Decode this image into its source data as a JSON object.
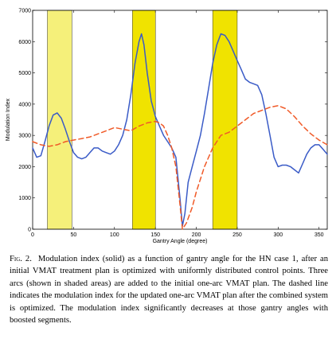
{
  "figure": {
    "chart_data": {
      "type": "line",
      "xlabel": "Gantry Angle (degree)",
      "ylabel": "Modulation Index",
      "xlim": [
        0,
        360
      ],
      "ylim": [
        0,
        7000
      ],
      "xticks": [
        0,
        50,
        100,
        150,
        200,
        250,
        300,
        350
      ],
      "yticks": [
        0,
        1000,
        2000,
        3000,
        4000,
        5000,
        6000,
        7000
      ],
      "grid": false,
      "shaded_regions": [
        {
          "x0": 18,
          "x1": 48,
          "color": "#f5f07a"
        },
        {
          "x0": 122,
          "x1": 150,
          "color": "#f0e300"
        },
        {
          "x0": 220,
          "x1": 250,
          "color": "#f0e300"
        }
      ],
      "series": [
        {
          "style": "solid",
          "color": "#3a5bc7",
          "points": [
            [
              0,
              2600
            ],
            [
              5,
              2300
            ],
            [
              10,
              2350
            ],
            [
              15,
              2800
            ],
            [
              20,
              3300
            ],
            [
              25,
              3650
            ],
            [
              30,
              3720
            ],
            [
              35,
              3550
            ],
            [
              40,
              3200
            ],
            [
              45,
              2800
            ],
            [
              50,
              2450
            ],
            [
              55,
              2300
            ],
            [
              60,
              2250
            ],
            [
              65,
              2300
            ],
            [
              70,
              2450
            ],
            [
              75,
              2600
            ],
            [
              80,
              2600
            ],
            [
              85,
              2500
            ],
            [
              90,
              2450
            ],
            [
              95,
              2400
            ],
            [
              100,
              2500
            ],
            [
              105,
              2700
            ],
            [
              110,
              3000
            ],
            [
              115,
              3500
            ],
            [
              120,
              4300
            ],
            [
              125,
              5300
            ],
            [
              130,
              6000
            ],
            [
              133,
              6250
            ],
            [
              136,
              5900
            ],
            [
              140,
              5000
            ],
            [
              145,
              4100
            ],
            [
              150,
              3600
            ],
            [
              155,
              3300
            ],
            [
              160,
              3000
            ],
            [
              165,
              2800
            ],
            [
              170,
              2600
            ],
            [
              175,
              2300
            ],
            [
              180,
              1000
            ],
            [
              183,
              100
            ],
            [
              186,
              500
            ],
            [
              190,
              1500
            ],
            [
              195,
              2000
            ],
            [
              200,
              2500
            ],
            [
              205,
              3000
            ],
            [
              210,
              3700
            ],
            [
              215,
              4500
            ],
            [
              220,
              5300
            ],
            [
              225,
              5900
            ],
            [
              230,
              6250
            ],
            [
              235,
              6200
            ],
            [
              240,
              6000
            ],
            [
              245,
              5700
            ],
            [
              250,
              5400
            ],
            [
              255,
              5100
            ],
            [
              260,
              4800
            ],
            [
              265,
              4700
            ],
            [
              270,
              4650
            ],
            [
              275,
              4600
            ],
            [
              280,
              4300
            ],
            [
              285,
              3700
            ],
            [
              290,
              3000
            ],
            [
              295,
              2300
            ],
            [
              300,
              2000
            ],
            [
              305,
              2050
            ],
            [
              310,
              2050
            ],
            [
              315,
              2000
            ],
            [
              320,
              1900
            ],
            [
              325,
              1800
            ],
            [
              330,
              2100
            ],
            [
              335,
              2400
            ],
            [
              340,
              2600
            ],
            [
              345,
              2700
            ],
            [
              350,
              2700
            ],
            [
              355,
              2550
            ],
            [
              360,
              2400
            ]
          ]
        },
        {
          "style": "dashed",
          "color": "#f05a28",
          "points": [
            [
              0,
              2800
            ],
            [
              10,
              2700
            ],
            [
              20,
              2650
            ],
            [
              30,
              2700
            ],
            [
              40,
              2800
            ],
            [
              50,
              2850
            ],
            [
              60,
              2900
            ],
            [
              70,
              2950
            ],
            [
              80,
              3050
            ],
            [
              90,
              3150
            ],
            [
              100,
              3250
            ],
            [
              110,
              3200
            ],
            [
              120,
              3150
            ],
            [
              130,
              3300
            ],
            [
              140,
              3400
            ],
            [
              150,
              3450
            ],
            [
              155,
              3400
            ],
            [
              160,
              3300
            ],
            [
              165,
              3000
            ],
            [
              170,
              2600
            ],
            [
              175,
              2000
            ],
            [
              180,
              800
            ],
            [
              183,
              0
            ],
            [
              188,
              200
            ],
            [
              195,
              700
            ],
            [
              200,
              1200
            ],
            [
              210,
              2000
            ],
            [
              220,
              2600
            ],
            [
              230,
              3000
            ],
            [
              240,
              3100
            ],
            [
              250,
              3300
            ],
            [
              260,
              3500
            ],
            [
              270,
              3700
            ],
            [
              280,
              3800
            ],
            [
              290,
              3900
            ],
            [
              300,
              3950
            ],
            [
              310,
              3850
            ],
            [
              320,
              3600
            ],
            [
              330,
              3300
            ],
            [
              340,
              3050
            ],
            [
              350,
              2850
            ],
            [
              360,
              2700
            ]
          ]
        }
      ]
    }
  },
  "caption": {
    "label": "Fig. 2.",
    "text": "Modulation index (solid) as a function of gantry angle for the HN case 1, after an initial VMAT treatment plan is optimized with uniformly distributed control points. Three arcs (shown in shaded areas) are added to the initial one-arc VMAT plan. The dashed line indicates the modulation index for the updated one-arc VMAT plan after the combined system is optimized. The modulation index significantly decreases at those gantry angles with boosted segments."
  }
}
